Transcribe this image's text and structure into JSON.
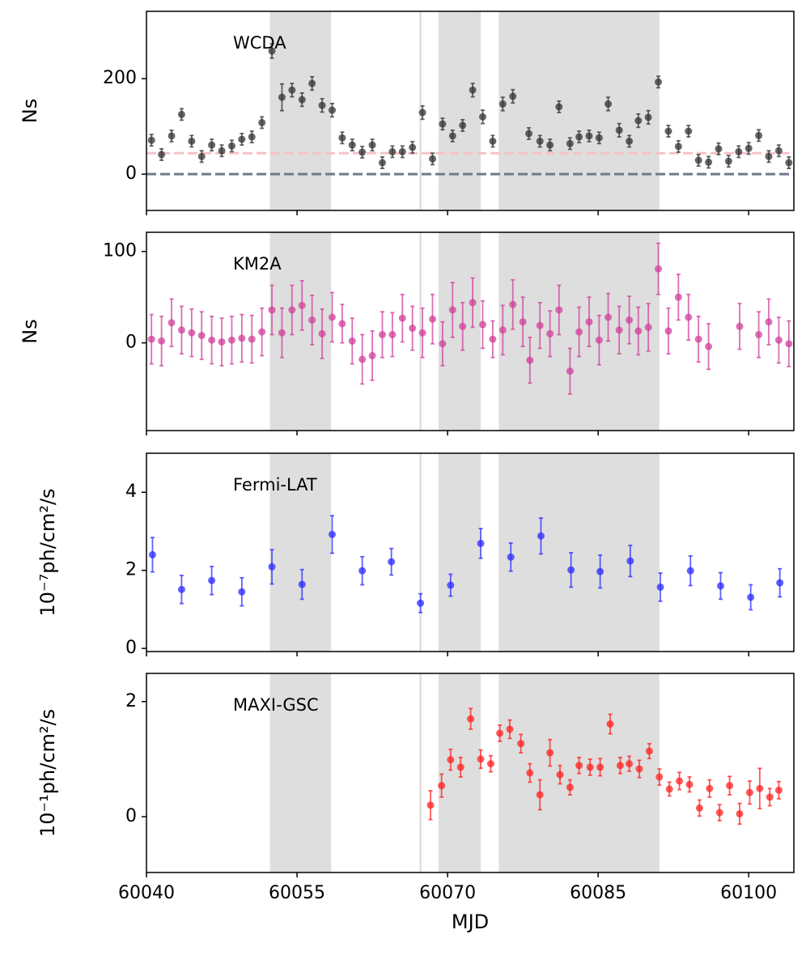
{
  "shaded_regions": [
    [
      60052.3,
      60058.4
    ],
    [
      60067.2,
      60067.4
    ],
    [
      60069.1,
      60073.3
    ],
    [
      60075.1,
      60091.1
    ]
  ],
  "chart_data": [
    {
      "type": "scatter",
      "annotation": "WCDA",
      "ylabel": "Ns",
      "color": "#333333",
      "xlim": [
        60040,
        60104.5
      ],
      "xticks": [
        60040,
        60055,
        60070,
        60085,
        60100
      ],
      "ylim": [
        -76,
        341
      ],
      "yticks": [
        0,
        200
      ],
      "hlines": [
        {
          "value": 44,
          "color": "#f7c1c8"
        },
        {
          "value": 0,
          "color": "#6e7b8b"
        }
      ],
      "x": [
        60040.5,
        60041.5,
        60042.5,
        60043.5,
        60044.5,
        60045.5,
        60046.5,
        60047.5,
        60048.5,
        60049.5,
        60050.5,
        60051.5,
        60052.5,
        60053.5,
        60054.5,
        60055.5,
        60056.5,
        60057.5,
        60058.5,
        60059.5,
        60060.5,
        60061.5,
        60062.5,
        60063.5,
        60064.5,
        60065.5,
        60066.5,
        60067.5,
        60068.5,
        60069.5,
        60070.5,
        60071.5,
        60072.5,
        60073.5,
        60074.5,
        60075.5,
        60076.5,
        60078.1,
        60079.2,
        60080.2,
        60081.1,
        60082.2,
        60083.1,
        60084.1,
        60085.1,
        60086.0,
        60087.1,
        60088.1,
        60089.0,
        60090.0,
        60091.0,
        60092.0,
        60093.0,
        60094.0,
        60095.0,
        60096.0,
        60097.0,
        60098.0,
        60099.0,
        60100.0,
        60101.0,
        60102.0,
        60103.0,
        60104.0
      ],
      "values": [
        71,
        41,
        80,
        125,
        69,
        37,
        61,
        49,
        59,
        73,
        78,
        108,
        258,
        161,
        176,
        156,
        190,
        144,
        134,
        76,
        61,
        46,
        61,
        24,
        47,
        47,
        56,
        129,
        32,
        105,
        80,
        102,
        176,
        120,
        69,
        147,
        163,
        85,
        69,
        61,
        141,
        64,
        78,
        80,
        76,
        147,
        92,
        69,
        112,
        119,
        193,
        90,
        58,
        90,
        29,
        25,
        53,
        27,
        47,
        54,
        81,
        37,
        49,
        24
      ],
      "errors": [
        12,
        12,
        12,
        12,
        12,
        12,
        12,
        12,
        12,
        12,
        12,
        12,
        15,
        28,
        14,
        14,
        14,
        14,
        14,
        12,
        12,
        12,
        12,
        12,
        12,
        12,
        12,
        14,
        12,
        12,
        12,
        12,
        14,
        14,
        12,
        14,
        14,
        12,
        12,
        12,
        12,
        12,
        12,
        12,
        12,
        14,
        14,
        12,
        14,
        14,
        12,
        12,
        12,
        12,
        12,
        12,
        12,
        12,
        12,
        12,
        12,
        12,
        12,
        12
      ]
    },
    {
      "type": "scatter",
      "annotation": "KM2A",
      "ylabel": "Ns",
      "color": "#d0409a",
      "xlim": [
        60040,
        60104.5
      ],
      "xticks": [
        60040,
        60055,
        60070,
        60085,
        60100
      ],
      "ylim": [
        -96,
        121
      ],
      "yticks": [
        0,
        100
      ],
      "x": [
        60040.5,
        60041.5,
        60042.5,
        60043.5,
        60044.5,
        60045.5,
        60046.5,
        60047.5,
        60048.5,
        60049.5,
        60050.5,
        60051.5,
        60052.5,
        60053.5,
        60054.5,
        60055.5,
        60056.5,
        60057.5,
        60058.5,
        60059.5,
        60060.5,
        60061.5,
        60062.5,
        60063.5,
        60064.5,
        60065.5,
        60066.5,
        60067.5,
        60068.5,
        60069.5,
        60070.5,
        60071.5,
        60072.5,
        60073.5,
        60074.5,
        60075.5,
        60076.5,
        60077.5,
        60078.2,
        60079.2,
        60080.2,
        60081.1,
        60082.2,
        60083.1,
        60084.1,
        60085.1,
        60086.0,
        60087.1,
        60088.1,
        60089.0,
        60090.0,
        60091.0,
        60092.0,
        60093.0,
        60094.0,
        60095.0,
        60096.0,
        60099.1,
        60101.0,
        60102.0,
        60103.0,
        60104.0
      ],
      "values": [
        4,
        2,
        22,
        14,
        11,
        8,
        3,
        1,
        3,
        5,
        4,
        12,
        36,
        11,
        36,
        41,
        25,
        10,
        28,
        21,
        2,
        -18,
        -14,
        9,
        9,
        27,
        16,
        11,
        26,
        -1,
        36,
        18,
        44,
        20,
        4,
        14,
        42,
        23,
        -19,
        19,
        10,
        36,
        -31,
        12,
        23,
        3,
        28,
        14,
        25,
        13,
        17,
        81,
        13,
        50,
        28,
        4,
        -4,
        18,
        9,
        23,
        3,
        -1
      ],
      "errors": [
        27,
        27,
        26,
        26,
        26,
        26,
        26,
        26,
        26,
        26,
        26,
        26,
        27,
        27,
        27,
        27,
        27,
        27,
        27,
        21,
        25,
        27,
        27,
        25,
        24,
        26,
        24,
        27,
        27,
        24,
        30,
        26,
        27,
        26,
        20,
        27,
        27,
        27,
        25,
        25,
        25,
        27,
        25,
        27,
        27,
        27,
        26,
        26,
        26,
        26,
        26,
        28,
        25,
        25,
        25,
        25,
        25,
        25,
        25,
        25,
        25,
        25
      ]
    },
    {
      "type": "scatter",
      "annotation": "Fermi-LAT",
      "ylabel": "10⁻⁷ph/cm²/s",
      "color": "#2b2bff",
      "xlim": [
        60040,
        60104.5
      ],
      "xticks": [
        60040,
        60055,
        60070,
        60085,
        60100
      ],
      "ylim": [
        -0.08,
        5.0
      ],
      "yticks": [
        0,
        2,
        4
      ],
      "x": [
        60040.6,
        60043.5,
        60046.5,
        60049.5,
        60052.5,
        60055.5,
        60058.5,
        60061.5,
        60064.4,
        60067.3,
        60070.3,
        60073.3,
        60076.3,
        60079.3,
        60082.3,
        60085.2,
        60088.2,
        60091.2,
        60094.2,
        60097.2,
        60100.2,
        60103.1
      ],
      "values": [
        2.4,
        1.51,
        1.74,
        1.45,
        2.09,
        1.64,
        2.92,
        1.99,
        2.22,
        1.16,
        1.62,
        2.69,
        2.34,
        2.88,
        2.01,
        1.97,
        2.24,
        1.57,
        1.99,
        1.6,
        1.31,
        1.68
      ],
      "errors": [
        0.44,
        0.36,
        0.36,
        0.36,
        0.44,
        0.38,
        0.48,
        0.36,
        0.34,
        0.24,
        0.28,
        0.38,
        0.36,
        0.46,
        0.44,
        0.42,
        0.4,
        0.36,
        0.38,
        0.34,
        0.32,
        0.36
      ]
    },
    {
      "type": "scatter",
      "annotation": "MAXI-GSC",
      "ylabel": "10⁻¹ph/cm²/s",
      "xlabel": "MJD",
      "color": "#ff2222",
      "xlim": [
        60040,
        60104.5
      ],
      "xticks": [
        60040,
        60055,
        60070,
        60085,
        60100
      ],
      "ylim": [
        -0.97,
        2.49
      ],
      "yticks": [
        0,
        2
      ],
      "x": [
        60068.3,
        60069.4,
        60070.3,
        60071.3,
        60072.3,
        60073.3,
        60074.3,
        60075.2,
        60076.2,
        60077.3,
        60078.2,
        60079.2,
        60080.2,
        60081.2,
        60082.2,
        60083.1,
        60084.2,
        60085.2,
        60086.2,
        60087.2,
        60088.1,
        60089.1,
        60090.1,
        60091.1,
        60092.1,
        60093.1,
        60094.1,
        60095.1,
        60096.1,
        60097.1,
        60098.1,
        60099.1,
        60100.1,
        60101.1,
        60102.1,
        60103.0
      ],
      "values": [
        0.2,
        0.54,
        0.99,
        0.86,
        1.7,
        1.0,
        0.92,
        1.45,
        1.52,
        1.27,
        0.76,
        0.38,
        1.11,
        0.73,
        0.51,
        0.89,
        0.86,
        0.86,
        1.61,
        0.89,
        0.92,
        0.83,
        1.14,
        0.69,
        0.48,
        0.62,
        0.56,
        0.15,
        0.49,
        0.07,
        0.54,
        0.05,
        0.42,
        0.49,
        0.34,
        0.46
      ],
      "errors": [
        0.25,
        0.2,
        0.18,
        0.17,
        0.18,
        0.16,
        0.14,
        0.14,
        0.16,
        0.16,
        0.16,
        0.26,
        0.23,
        0.16,
        0.13,
        0.14,
        0.14,
        0.15,
        0.17,
        0.14,
        0.13,
        0.15,
        0.13,
        0.14,
        0.12,
        0.15,
        0.13,
        0.14,
        0.15,
        0.14,
        0.16,
        0.18,
        0.2,
        0.35,
        0.15,
        0.15
      ]
    }
  ]
}
